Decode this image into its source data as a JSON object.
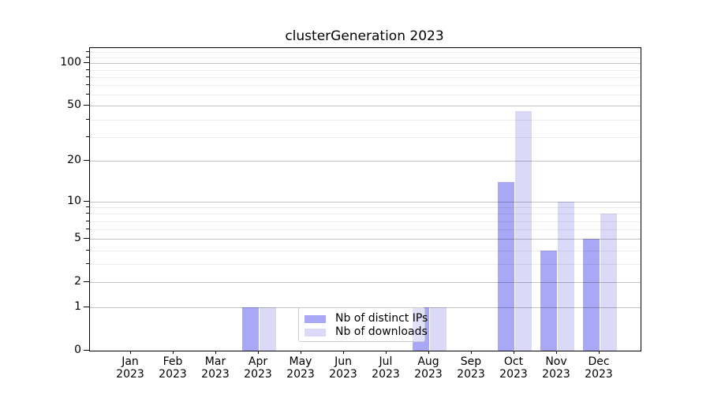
{
  "chart_data": {
    "type": "bar",
    "title": "clusterGeneration 2023",
    "categories": [
      "Jan",
      "Feb",
      "Mar",
      "Apr",
      "May",
      "Jun",
      "Jul",
      "Aug",
      "Sep",
      "Oct",
      "Nov",
      "Dec"
    ],
    "category_year": "2023",
    "series": [
      {
        "name": "Nb of distinct IPs",
        "color": "#a8a8f7",
        "values": [
          0,
          0,
          0,
          1,
          0,
          0,
          0,
          1,
          0,
          14,
          4,
          5
        ]
      },
      {
        "name": "Nb of downloads",
        "color": "#dadaf8",
        "values": [
          0,
          0,
          0,
          1,
          0,
          0,
          0,
          1,
          0,
          46,
          10,
          8
        ]
      }
    ],
    "xlabel": "",
    "ylabel": "",
    "y_axis": {
      "scale": "log1p",
      "major_ticks": [
        0,
        1,
        2,
        5,
        10,
        20,
        50,
        100
      ],
      "minor_ticks": [
        3,
        4,
        6,
        7,
        8,
        9,
        30,
        40,
        60,
        70,
        80,
        90,
        110,
        120
      ],
      "max_value": 128
    },
    "grid": {
      "horizontal_major": true,
      "horizontal_minor": true,
      "vertical": false
    },
    "legend": {
      "position": "bottom-center-inside"
    }
  }
}
